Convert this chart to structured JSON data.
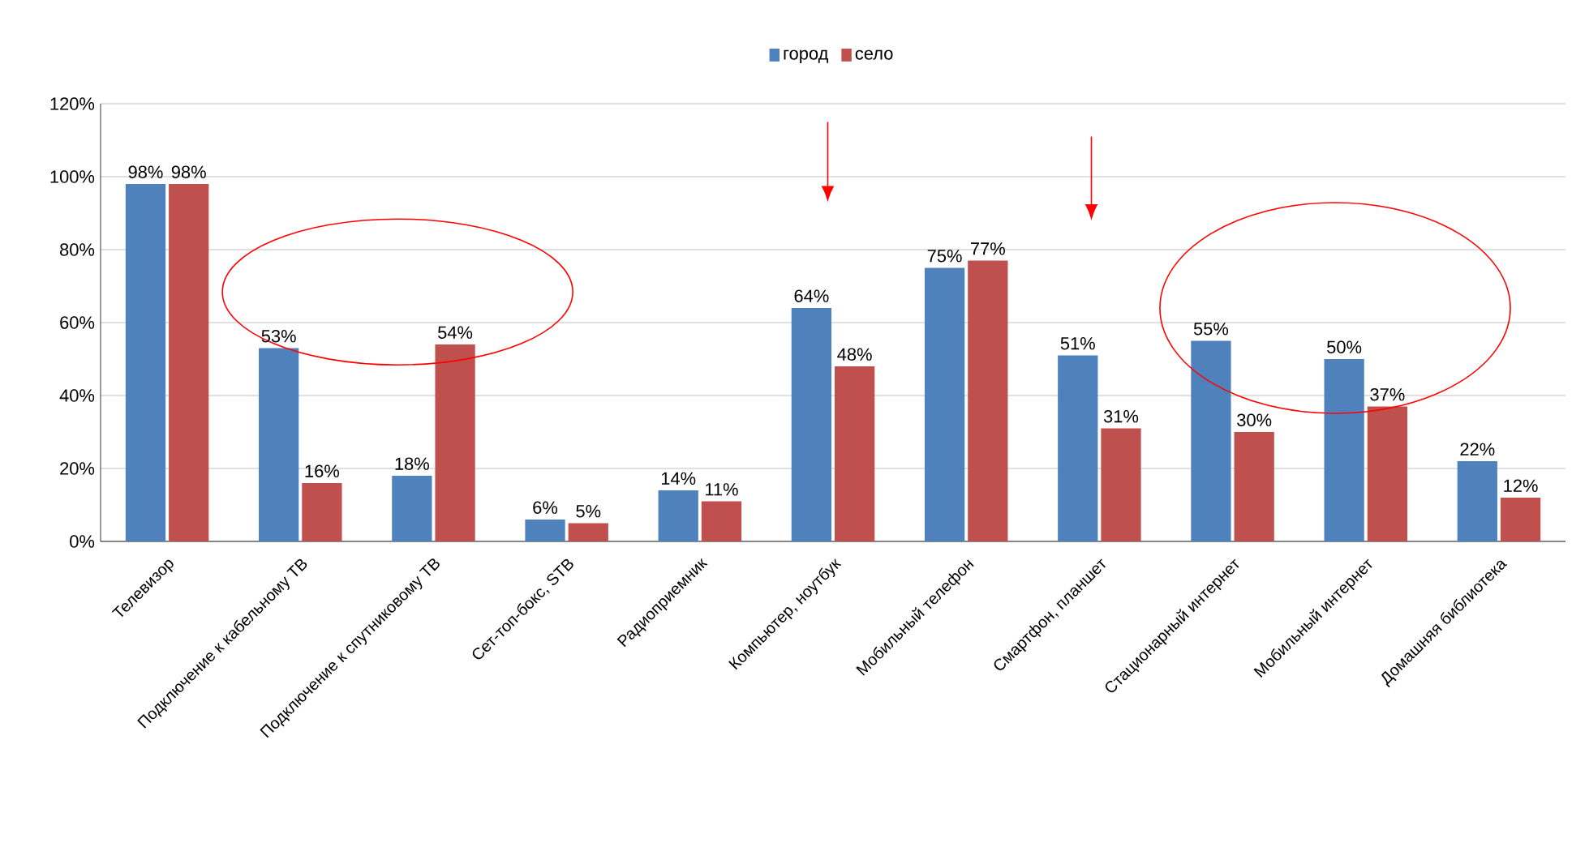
{
  "chart_data": {
    "type": "bar",
    "categories": [
      "Телевизор",
      "Подключение к кабельному ТВ",
      "Подключение к спутниковому ТВ",
      "Сет-топ-бокс, STB",
      "Радиоприемник",
      "Компьютер, ноутбук",
      "Мобильный телефон",
      "Смартфон, планшет",
      "Стационарный интернет",
      "Мобильный интернет",
      "Домашняя библиотека"
    ],
    "series": [
      {
        "name": "город",
        "color": "#4f81bd",
        "values": [
          98,
          53,
          18,
          6,
          14,
          64,
          75,
          51,
          55,
          50,
          22
        ],
        "value_labels": [
          "98%",
          "53%",
          "18%",
          "6%",
          "14%",
          "64%",
          "75%",
          "51%",
          "55%",
          "50%",
          "22%"
        ]
      },
      {
        "name": "село",
        "color": "#c0504d",
        "values": [
          98,
          16,
          54,
          5,
          11,
          48,
          77,
          31,
          30,
          37,
          12
        ],
        "value_labels": [
          "98%",
          "16%",
          "54%",
          "5%",
          "11%",
          "48%",
          "77%",
          "31%",
          "30%",
          "37%",
          "12%"
        ]
      }
    ],
    "ylim": [
      0,
      120
    ],
    "yticks": [
      {
        "value": 0,
        "label": "0%"
      },
      {
        "value": 20,
        "label": "20%"
      },
      {
        "value": 40,
        "label": "40%"
      },
      {
        "value": 60,
        "label": "60%"
      },
      {
        "value": 80,
        "label": "80%"
      },
      {
        "value": 100,
        "label": "100%"
      },
      {
        "value": 120,
        "label": "120%"
      }
    ],
    "grid": "y",
    "legend": "top"
  }
}
